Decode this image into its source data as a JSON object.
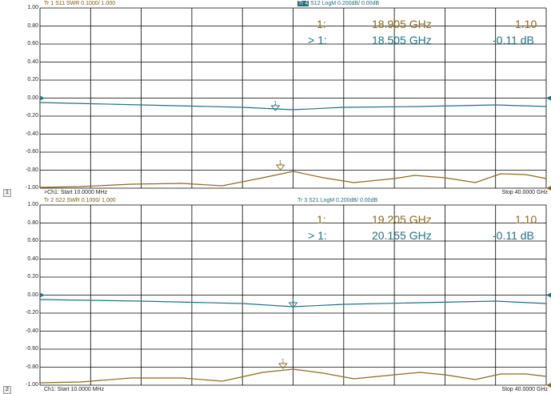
{
  "panels": [
    {
      "trace_a": "Tr 1  S11 SWR 0.1000/ 1.000",
      "trace_b_num": "Tr 4",
      "trace_b": " S12 LogM 0.200dB/ 0.00dB",
      "y_labels": [
        "1.00",
        "0.80",
        "0.60",
        "0.40",
        "0.20",
        "0.00",
        "-0.20",
        "-0.40",
        "-0.60",
        "-0.80",
        "-1.00"
      ],
      "marker_row1": {
        "id": "1:",
        "freq": "18.905 GHz",
        "value": "1.10"
      },
      "marker_row2": {
        "id": "> 1:",
        "freq": "18.505 GHz",
        "value": "-0.11 dB"
      },
      "marker_flag": "1",
      "channel_number": "1",
      "start": ">Ch1: Start  10.0000 MHz",
      "stop": "Stop  40.0000 GHz"
    },
    {
      "trace_a": "Tr 2  S22 SWR 0.1000/ 1.000",
      "trace_b_num": "",
      "trace_b": "Tr 3  S21 LogM 0.200dB/ 0.00dB",
      "y_labels": [
        "1.00",
        "0.80",
        "0.60",
        "0.40",
        "0.20",
        "0.00",
        "-0.20",
        "-0.40",
        "-0.60",
        "-0.80",
        "-1.00"
      ],
      "marker_row1": {
        "id": "1:",
        "freq": "19.205 GHz",
        "value": "1.10"
      },
      "marker_row2": {
        "id": "> 1:",
        "freq": "20.155 GHz",
        "value": "-0.11 dB"
      },
      "marker_flag": "1",
      "channel_number": "2",
      "start": "Ch1: Start  10.0000 MHz",
      "stop": "Stop  40.0000 GHz"
    }
  ],
  "colors": {
    "swr": "#8a6a1e",
    "logm": "#1f7382",
    "grid": "#000000"
  }
}
